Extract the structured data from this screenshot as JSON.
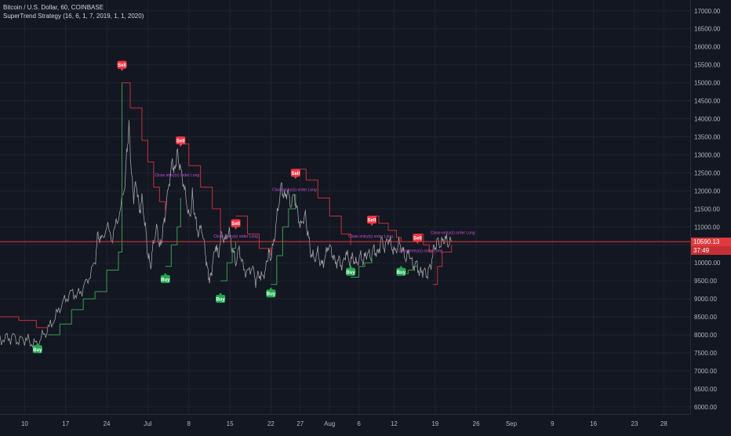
{
  "legend": {
    "symbol": "Bitcoin / U.S. Dollar, 60, COINBASE",
    "strategy": "SuperTrend Strategy (16, 6, 1, 7, 2019, 1, 1, 2020)"
  },
  "colors": {
    "background": "#131722",
    "grid": "#1f2330",
    "price": "#b8b8b8",
    "supertrend_down": "#c2323b",
    "supertrend_up": "#3f9a52",
    "sell": "#f23645",
    "buy": "#22ab52",
    "entry_long": "#2196f3",
    "close_annotation": "#cc4fd8",
    "current_price_line": "#e03a3e"
  },
  "current_price": {
    "label": "10590.13",
    "countdown": "37:49"
  },
  "price_axis": {
    "ticks": [
      {
        "value": 17000,
        "label": "17000.00"
      },
      {
        "value": 16500,
        "label": "16500.00"
      },
      {
        "value": 16000,
        "label": "16000.00"
      },
      {
        "value": 15500,
        "label": "15500.00"
      },
      {
        "value": 15000,
        "label": "15000.00"
      },
      {
        "value": 14500,
        "label": "14500.00"
      },
      {
        "value": 14000,
        "label": "14000.00"
      },
      {
        "value": 13500,
        "label": "13500.00"
      },
      {
        "value": 13000,
        "label": "13000.00"
      },
      {
        "value": 12500,
        "label": "12500.00"
      },
      {
        "value": 12000,
        "label": "12000.00"
      },
      {
        "value": 11500,
        "label": "11500.00"
      },
      {
        "value": 11000,
        "label": "11000.00"
      },
      {
        "value": 10500,
        "label": "10500.00"
      },
      {
        "value": 10000,
        "label": "10000.00"
      },
      {
        "value": 9500,
        "label": "9500.00"
      },
      {
        "value": 9000,
        "label": "9000.00"
      },
      {
        "value": 8500,
        "label": "8500.00"
      },
      {
        "value": 8000,
        "label": "8000.00"
      },
      {
        "value": 7500,
        "label": "7500.00"
      },
      {
        "value": 7000,
        "label": "7000.00"
      },
      {
        "value": 6500,
        "label": "6500.00"
      },
      {
        "value": 6000,
        "label": "6000.00"
      }
    ]
  },
  "time_axis": {
    "ticks": [
      {
        "day": 10,
        "label": "10"
      },
      {
        "day": 17,
        "label": "17"
      },
      {
        "day": 24,
        "label": "24"
      },
      {
        "day": 31,
        "label": "Jul"
      },
      {
        "day": 38,
        "label": "8"
      },
      {
        "day": 45,
        "label": "15"
      },
      {
        "day": 52,
        "label": "22"
      },
      {
        "day": 57,
        "label": "27"
      },
      {
        "day": 62,
        "label": "Aug"
      },
      {
        "day": 67,
        "label": "6"
      },
      {
        "day": 73,
        "label": "12"
      },
      {
        "day": 80,
        "label": "19"
      },
      {
        "day": 87,
        "label": "26"
      },
      {
        "day": 93,
        "label": "Sep"
      },
      {
        "day": 100,
        "label": "9"
      },
      {
        "day": 107,
        "label": "16"
      },
      {
        "day": 114,
        "label": "23"
      },
      {
        "day": 119,
        "label": "28"
      }
    ]
  },
  "chart_data": {
    "type": "line",
    "title": "Bitcoin / U.S. Dollar, 60, COINBASE",
    "subtitle": "SuperTrend Strategy (16, 6, 1, 7, 2019, 1, 1, 2020)",
    "ylim": [
      5800,
      17300
    ],
    "xlim": [
      5.8,
      123.5
    ],
    "grid": true,
    "series": [
      {
        "name": "Bitcoin / U.S. Dollar",
        "points": [
          [
            5.8,
            7900
          ],
          [
            7,
            7880
          ],
          [
            8,
            7950
          ],
          [
            9,
            7820
          ],
          [
            10,
            7900
          ],
          [
            11,
            7800
          ],
          [
            12,
            7750
          ],
          [
            13,
            7950
          ],
          [
            14,
            8150
          ],
          [
            15,
            8400
          ],
          [
            16,
            8750
          ],
          [
            17,
            9000
          ],
          [
            18,
            9200
          ],
          [
            19,
            9100
          ],
          [
            20,
            9300
          ],
          [
            21,
            9600
          ],
          [
            22,
            10000
          ],
          [
            22.5,
            10800
          ],
          [
            23,
            10600
          ],
          [
            24,
            11000
          ],
          [
            25,
            10700
          ],
          [
            26,
            11300
          ],
          [
            27,
            12000
          ],
          [
            27.4,
            13000
          ],
          [
            27.8,
            13800
          ],
          [
            28.2,
            12500
          ],
          [
            28.6,
            11800
          ],
          [
            29,
            12300
          ],
          [
            29.6,
            11400
          ],
          [
            30,
            11800
          ],
          [
            30.6,
            11000
          ],
          [
            31,
            10200
          ],
          [
            31.5,
            9900
          ],
          [
            32,
            10600
          ],
          [
            32.6,
            11000
          ],
          [
            33,
            10400
          ],
          [
            33.5,
            10800
          ],
          [
            34,
            11400
          ],
          [
            34.6,
            12200
          ],
          [
            35.2,
            12800
          ],
          [
            35.6,
            12500
          ],
          [
            36,
            13100
          ],
          [
            36.4,
            12700
          ],
          [
            37,
            12300
          ],
          [
            37.6,
            11700
          ],
          [
            38.2,
            11200
          ],
          [
            38.6,
            11900
          ],
          [
            39,
            11300
          ],
          [
            39.6,
            10800
          ],
          [
            40.2,
            11000
          ],
          [
            40.8,
            10300
          ],
          [
            41.2,
            9800
          ],
          [
            41.6,
            9500
          ],
          [
            42,
            9900
          ],
          [
            42.6,
            10500
          ],
          [
            43,
            10200
          ],
          [
            43.6,
            10800
          ],
          [
            44.2,
            10600
          ],
          [
            44.8,
            10900
          ],
          [
            45.4,
            10400
          ],
          [
            46,
            10000
          ],
          [
            46.6,
            10400
          ],
          [
            47.2,
            9900
          ],
          [
            48,
            9700
          ],
          [
            48.8,
            9900
          ],
          [
            49.4,
            9500
          ],
          [
            50,
            9700
          ],
          [
            50.6,
            9600
          ],
          [
            51.2,
            9900
          ],
          [
            51.6,
            10300
          ],
          [
            52,
            10100
          ],
          [
            52.6,
            10700
          ],
          [
            53.2,
            11500
          ],
          [
            53.8,
            12200
          ],
          [
            54.2,
            11800
          ],
          [
            54.8,
            12000
          ],
          [
            55.4,
            11600
          ],
          [
            56,
            11900
          ],
          [
            56.6,
            11300
          ],
          [
            57.2,
            11000
          ],
          [
            57.8,
            11400
          ],
          [
            58.2,
            10900
          ],
          [
            58.8,
            10300
          ],
          [
            59.4,
            10100
          ],
          [
            60,
            10300
          ],
          [
            60.6,
            9900
          ],
          [
            61.2,
            10100
          ],
          [
            61.8,
            10500
          ],
          [
            62.4,
            10300
          ],
          [
            63,
            10000
          ],
          [
            63.6,
            10100
          ],
          [
            64.2,
            9900
          ],
          [
            64.8,
            10300
          ],
          [
            65.4,
            10000
          ],
          [
            66,
            10150
          ],
          [
            66.6,
            9950
          ],
          [
            67.2,
            10200
          ],
          [
            67.8,
            10050
          ],
          [
            68.4,
            10300
          ],
          [
            69,
            10150
          ],
          [
            69.6,
            10400
          ],
          [
            70.2,
            10200
          ],
          [
            70.8,
            10650
          ],
          [
            71.4,
            10400
          ],
          [
            72,
            10700
          ],
          [
            72.6,
            10450
          ],
          [
            73.2,
            10300
          ],
          [
            73.8,
            10550
          ],
          [
            74.4,
            10350
          ],
          [
            75,
            10100
          ],
          [
            75.6,
            10300
          ],
          [
            76.2,
            9900
          ],
          [
            76.8,
            10000
          ],
          [
            77.4,
            9700
          ],
          [
            78,
            9800
          ],
          [
            78.6,
            9650
          ],
          [
            79.2,
            9900
          ],
          [
            79.8,
            10400
          ],
          [
            80.4,
            10600
          ],
          [
            81,
            10500
          ],
          [
            81.6,
            10700
          ],
          [
            82.2,
            10550
          ],
          [
            82.8,
            10600
          ]
        ]
      },
      {
        "name": "SuperTrend",
        "points": [
          [
            5.8,
            8500
          ],
          [
            9,
            8400
          ],
          [
            12,
            8200
          ],
          [
            14,
            8200
          ],
          [
            14,
            8000
          ],
          [
            16,
            8300
          ],
          [
            18,
            8700
          ],
          [
            20,
            9000
          ],
          [
            22,
            9200
          ],
          [
            24,
            9800
          ],
          [
            26,
            10300
          ],
          [
            26.6,
            15000
          ],
          [
            28,
            14300
          ],
          [
            30,
            13400
          ],
          [
            31,
            12800
          ],
          [
            32,
            12100
          ],
          [
            33,
            11700
          ],
          [
            34,
            11400
          ],
          [
            34,
            9900
          ],
          [
            35,
            10500
          ],
          [
            36,
            11000
          ],
          [
            36.6,
            11800
          ],
          [
            36.6,
            13300
          ],
          [
            38,
            12700
          ],
          [
            40,
            12100
          ],
          [
            42,
            11500
          ],
          [
            43.4,
            10800
          ],
          [
            43.4,
            9500
          ],
          [
            44.5,
            10000
          ],
          [
            45.4,
            10400
          ],
          [
            46,
            10600
          ],
          [
            46,
            11300
          ],
          [
            48,
            10800
          ],
          [
            50,
            10400
          ],
          [
            52,
            10200
          ],
          [
            52,
            9400
          ],
          [
            53,
            10200
          ],
          [
            54,
            11000
          ],
          [
            55,
            11500
          ],
          [
            56.2,
            11900
          ],
          [
            56.2,
            12600
          ],
          [
            58,
            12300
          ],
          [
            60,
            11800
          ],
          [
            62,
            11300
          ],
          [
            64,
            10800
          ],
          [
            65.6,
            10500
          ],
          [
            65.6,
            9600
          ],
          [
            67,
            9900
          ],
          [
            68,
            10000
          ],
          [
            69.2,
            10200
          ],
          [
            69.2,
            11300
          ],
          [
            70.4,
            11100
          ],
          [
            72,
            10900
          ],
          [
            73.4,
            10700
          ],
          [
            74.2,
            10600
          ],
          [
            74.2,
            9700
          ],
          [
            75.4,
            9800
          ],
          [
            76.2,
            9900
          ],
          [
            77,
            9950
          ],
          [
            77,
            10800
          ],
          [
            78,
            10500
          ],
          [
            79,
            10300
          ],
          [
            79.6,
            10200
          ],
          [
            79.6,
            9400
          ],
          [
            80.4,
            9900
          ],
          [
            81.2,
            10300
          ],
          [
            82.8,
            10500
          ]
        ]
      }
    ],
    "signals": [
      {
        "label": "Sell",
        "x": 26.6,
        "y": 15500,
        "kind": "sell"
      },
      {
        "label": "Sell",
        "x": 36.6,
        "y": 13400,
        "kind": "sell"
      },
      {
        "label": "Sell",
        "x": 46,
        "y": 11100,
        "kind": "sell"
      },
      {
        "label": "Sell",
        "x": 56.2,
        "y": 12500,
        "kind": "sell"
      },
      {
        "label": "Sell",
        "x": 69.2,
        "y": 11200,
        "kind": "sell"
      },
      {
        "label": "Sell",
        "x": 77,
        "y": 10700,
        "kind": "sell"
      },
      {
        "label": "Buy",
        "x": 12.2,
        "y": 7600,
        "kind": "buy"
      },
      {
        "label": "Buy",
        "x": 34,
        "y": 9550,
        "kind": "buy"
      },
      {
        "label": "Buy",
        "x": 43.4,
        "y": 9000,
        "kind": "buy"
      },
      {
        "label": "Buy",
        "x": 52,
        "y": 9150,
        "kind": "buy"
      },
      {
        "label": "Buy",
        "x": 65.6,
        "y": 9750,
        "kind": "buy"
      },
      {
        "label": "Buy",
        "x": 74.2,
        "y": 9750,
        "kind": "buy"
      }
    ],
    "annotations": [
      {
        "text": "Close entry(s) order Long",
        "x": 36,
        "y": 12400,
        "kind": "close"
      },
      {
        "text": "Close entry(s) order Long",
        "x": 46,
        "y": 10700,
        "kind": "close"
      },
      {
        "text": "Close entry(s) order Long",
        "x": 56,
        "y": 12000,
        "kind": "close"
      },
      {
        "text": "Close entry(s) order Long",
        "x": 69,
        "y": 10700,
        "kind": "close"
      },
      {
        "text": "Close entry(s) order Long",
        "x": 77.5,
        "y": 10300,
        "kind": "close"
      },
      {
        "text": "Close entry(s) order Long",
        "x": 83,
        "y": 10800,
        "kind": "close"
      }
    ]
  }
}
